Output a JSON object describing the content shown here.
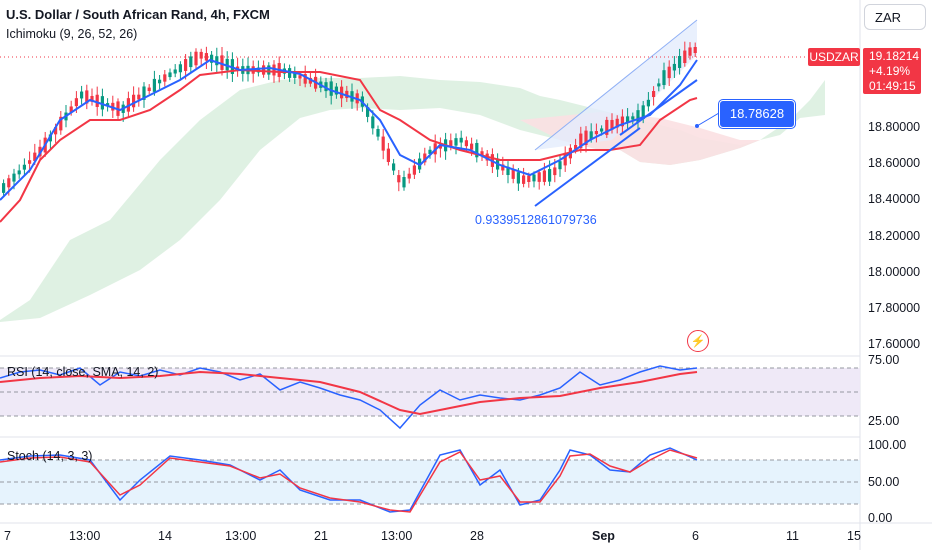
{
  "header": {
    "title": "U.S. Dollar / South African Rand, 4h, FXCM",
    "indicator": "Ichimoku (9, 26, 52, 26)"
  },
  "currency_button": "ZAR",
  "symbol_tag": "USDZAR",
  "price_box": {
    "price": "19.18214",
    "change": "+4.19%",
    "countdown": "01:49:15"
  },
  "callout": "18.78628",
  "fib_text": "0.9339512861079736",
  "rsi_label": "RSI (14, close, SMA, 14, 2)",
  "stoch_label": "Stoch (14, 3, 3)",
  "price_axis": [
    "18.80000",
    "18.60000",
    "18.40000",
    "18.20000",
    "18.00000",
    "17.80000",
    "17.60000"
  ],
  "rsi_axis": [
    "75.00",
    "25.00"
  ],
  "stoch_axis": [
    "100.00",
    "50.00",
    "0.00"
  ],
  "time_axis": [
    "7",
    "13:00",
    "14",
    "13:00",
    "21",
    "13:00",
    "28",
    "Sep",
    "6",
    "11",
    "15"
  ],
  "icons": {
    "alert": "lightning-bolt-icon"
  },
  "colors": {
    "up": "#089981",
    "down": "#f23645",
    "blue": "#2962ff",
    "red_line": "#f23645"
  }
}
